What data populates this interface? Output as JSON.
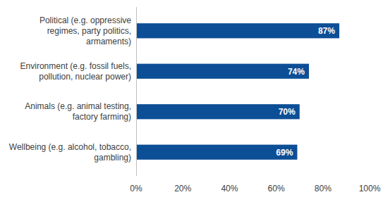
{
  "chart_data": {
    "type": "bar",
    "orientation": "horizontal",
    "categories": [
      "Political (e.g. oppressive regimes, party politics, armaments)",
      "Environment (e.g. fossil fuels, pollution, nuclear power)",
      "Animals (e.g. animal testing, factory farming)",
      "Wellbeing (e.g. alcohol, tobacco, gambling)"
    ],
    "values": [
      87,
      74,
      70,
      69
    ],
    "value_labels": [
      "87%",
      "74%",
      "70%",
      "69%"
    ],
    "color": "#0d4f96",
    "xlim": [
      0,
      100
    ],
    "xticks": [
      {
        "value": 0,
        "label": "0%"
      },
      {
        "value": 20,
        "label": "20%"
      },
      {
        "value": 40,
        "label": "40%"
      },
      {
        "value": 60,
        "label": "60%"
      },
      {
        "value": 80,
        "label": "80%"
      },
      {
        "value": 100,
        "label": "100%"
      }
    ],
    "grid": false,
    "data_labels": true
  }
}
